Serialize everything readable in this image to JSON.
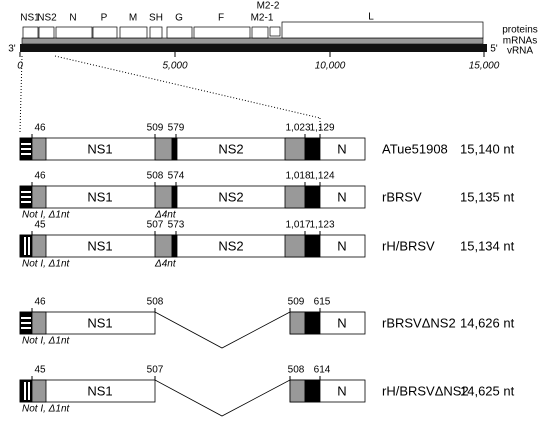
{
  "genome": {
    "genes": [
      "NS1",
      "NS2",
      "N",
      "P",
      "M",
      "SH",
      "G",
      "F",
      "M2-1",
      "M2-2",
      "L"
    ],
    "tracks": [
      "proteins",
      "mRNAs",
      "vRNA"
    ],
    "ends": [
      "3'",
      "5'"
    ],
    "axis": [
      "0",
      "5,000",
      "10,000",
      "15,000"
    ]
  },
  "constructs": [
    {
      "name": "ATue51908",
      "length": "15,140 nt",
      "positions": [
        "46",
        "509",
        "579",
        "1,023",
        "1,129"
      ],
      "segments": [
        "NS1",
        "NS2",
        "N"
      ],
      "annotations": []
    },
    {
      "name": "rBRSV",
      "length": "15,135 nt",
      "positions": [
        "46",
        "508",
        "574",
        "1,018",
        "1,124"
      ],
      "segments": [
        "NS1",
        "NS2",
        "N"
      ],
      "annotations": [
        "Not I, Δ1nt",
        "Δ4nt"
      ]
    },
    {
      "name": "rH/BRSV",
      "length": "15,134 nt",
      "positions": [
        "45",
        "507",
        "573",
        "1,017",
        "1,123"
      ],
      "segments": [
        "NS1",
        "NS2",
        "N"
      ],
      "annotations": [
        "Not I, Δ1nt",
        "Δ4nt"
      ]
    },
    {
      "name": "rBRSVΔNS2",
      "length": "14,626 nt",
      "positions": [
        "46",
        "508",
        "509",
        "615"
      ],
      "segments": [
        "NS1",
        "N"
      ],
      "annotations": [
        "Not I, Δ1nt"
      ]
    },
    {
      "name": "rH/BRSVΔNS2",
      "length": "14,625 nt",
      "positions": [
        "45",
        "507",
        "508",
        "614"
      ],
      "segments": [
        "NS1",
        "N"
      ],
      "annotations": [
        "Not I, Δ1nt"
      ]
    }
  ]
}
